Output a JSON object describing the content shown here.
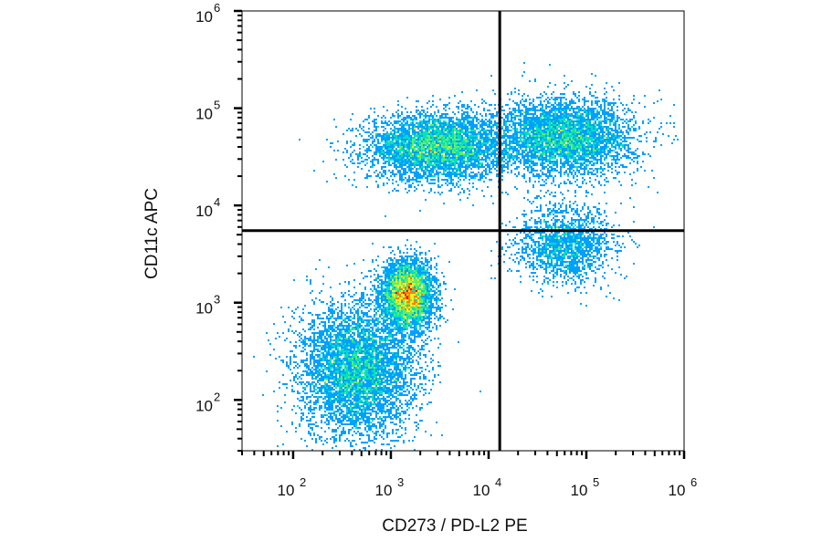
{
  "chart_data": {
    "type": "scatter",
    "subtype": "flow-cytometry density dot plot with quadrant gate",
    "title": "",
    "xlabel": "CD273 / PD-L2 PE",
    "ylabel": "CD11c APC",
    "x_scale": "log",
    "y_scale": "log",
    "xlim": [
      30,
      1000000
    ],
    "ylim": [
      30,
      1000000
    ],
    "x_ticks": [
      {
        "value": 100,
        "base": "10",
        "exp": "2"
      },
      {
        "value": 1000,
        "base": "10",
        "exp": "3"
      },
      {
        "value": 10000,
        "base": "10",
        "exp": "4"
      },
      {
        "value": 100000,
        "base": "10",
        "exp": "5"
      },
      {
        "value": 1000000,
        "base": "10",
        "exp": "6"
      }
    ],
    "y_ticks": [
      {
        "value": 100,
        "base": "10",
        "exp": "2"
      },
      {
        "value": 1000,
        "base": "10",
        "exp": "3"
      },
      {
        "value": 10000,
        "base": "10",
        "exp": "4"
      },
      {
        "value": 100000,
        "base": "10",
        "exp": "5"
      },
      {
        "value": 1000000,
        "base": "10",
        "exp": "6"
      }
    ],
    "quadrant_gate": {
      "x": 13000,
      "y": 5500
    },
    "density_colormap": [
      "#0000ee",
      "#00a0ff",
      "#00e0c0",
      "#60f060",
      "#f0f020",
      "#ff8000",
      "#ee0000"
    ],
    "populations": [
      {
        "description": "CD11c high, PD-L2 low-mid",
        "x_center": 3000,
        "y_center": 40000,
        "x_spread_decades": 0.35,
        "y_spread_decades": 0.17,
        "relative_count": 0.22
      },
      {
        "description": "CD11c high, PD-L2 high",
        "x_center": 60000,
        "y_center": 50000,
        "x_spread_decades": 0.35,
        "y_spread_decades": 0.2,
        "relative_count": 0.2
      },
      {
        "description": "CD11c intermediate, PD-L2 low",
        "x_center": 1500,
        "y_center": 1200,
        "x_spread_decades": 0.13,
        "y_spread_decades": 0.17,
        "relative_count": 0.2
      },
      {
        "description": "CD11c/PD-L2 double low tail",
        "x_center": 450,
        "y_center": 200,
        "x_spread_decades": 0.3,
        "y_spread_decades": 0.35,
        "relative_count": 0.25
      },
      {
        "description": "CD11c low-mid, PD-L2 high",
        "x_center": 60000,
        "y_center": 4000,
        "x_spread_decades": 0.25,
        "y_spread_decades": 0.2,
        "relative_count": 0.08
      }
    ],
    "grid": false,
    "legend": "none"
  }
}
